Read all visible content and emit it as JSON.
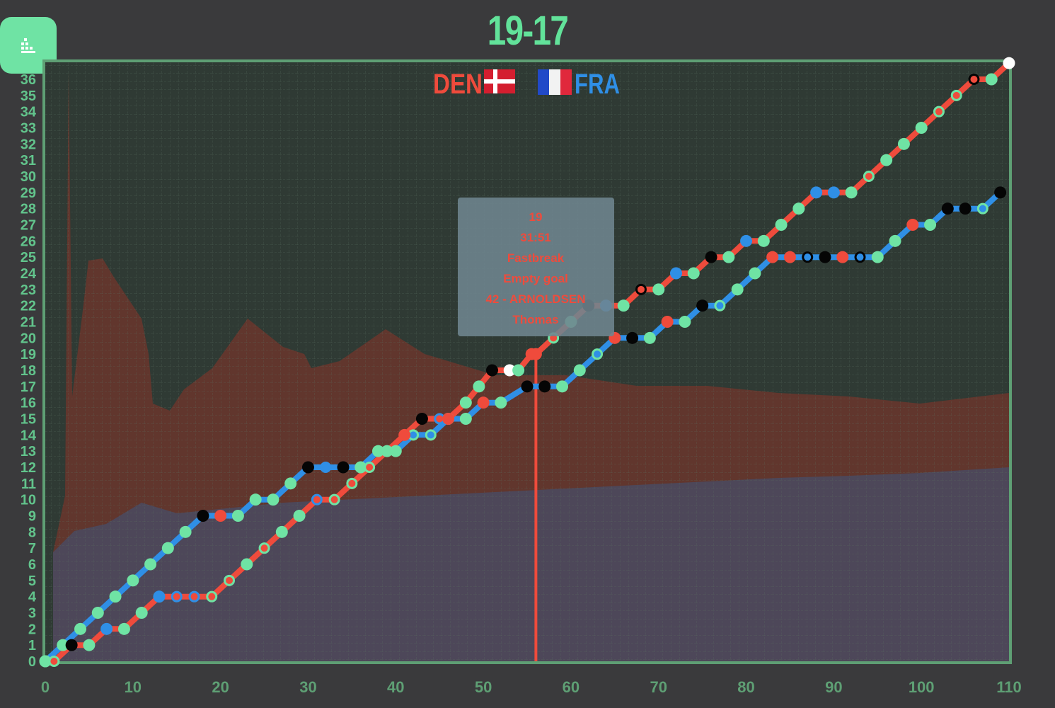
{
  "header": {
    "score": "19-17",
    "menu_icon": "chart-menu-icon"
  },
  "colors": {
    "accent": "#6fe3a4",
    "frame": "#5e9f74",
    "den": "#ef4b3c",
    "fra": "#2f8fe6",
    "bg": "#3a3a3c",
    "black": "#050505",
    "white": "#ffffff"
  },
  "teams": {
    "home": {
      "code": "DEN",
      "flag": "denmark-flag-icon",
      "color": "#ef4b3c"
    },
    "away": {
      "code": "FRA",
      "flag": "france-flag-icon",
      "color": "#2f8fe6"
    }
  },
  "tooltip": {
    "lines": [
      "19",
      "31:51",
      "Fastbreak",
      "Empty goal",
      "42 - ARNOLDSEN",
      "Thomas"
    ]
  },
  "chart_data": {
    "type": "line",
    "xlim": [
      0,
      110
    ],
    "ylim": [
      0,
      36
    ],
    "xticks": [
      0,
      10,
      20,
      30,
      40,
      50,
      60,
      70,
      80,
      90,
      100,
      110
    ],
    "yticks": [
      0,
      1,
      2,
      3,
      4,
      5,
      6,
      7,
      8,
      9,
      10,
      11,
      12,
      13,
      14,
      15,
      16,
      17,
      18,
      19,
      20,
      21,
      22,
      23,
      24,
      25,
      26,
      27,
      28,
      29,
      30,
      31,
      32,
      33,
      34,
      35,
      36
    ],
    "grid": true,
    "cursor_x": 56,
    "series": [
      {
        "name": "DEN",
        "color": "#ef4b3c",
        "points": [
          [
            0,
            0,
            "green"
          ],
          [
            1,
            0,
            "green-ring"
          ],
          [
            3,
            1,
            "black"
          ],
          [
            5,
            1,
            "green"
          ],
          [
            7,
            2,
            "blue"
          ],
          [
            9,
            2,
            "green"
          ],
          [
            11,
            3,
            "green"
          ],
          [
            13,
            4,
            "blue"
          ],
          [
            15,
            4,
            "blue-ring"
          ],
          [
            17,
            4,
            "blue-ring"
          ],
          [
            19,
            4,
            "green-ring"
          ],
          [
            21,
            5,
            "green-ring"
          ],
          [
            23,
            6,
            "green"
          ],
          [
            25,
            7,
            "green-ring"
          ],
          [
            27,
            8,
            "green"
          ],
          [
            29,
            9,
            "green"
          ],
          [
            31,
            10,
            "blue-ring"
          ],
          [
            33,
            10,
            "green-ring"
          ],
          [
            35,
            11,
            "green-ring"
          ],
          [
            37,
            12,
            "green-ring"
          ],
          [
            39,
            13,
            "green"
          ],
          [
            41,
            14,
            "red"
          ],
          [
            43,
            15,
            "black"
          ],
          [
            45,
            15,
            "blue-ring"
          ],
          [
            46,
            15,
            "red"
          ],
          [
            48,
            16,
            "green"
          ],
          [
            49.5,
            17,
            "green"
          ],
          [
            51,
            18,
            "black"
          ],
          [
            53,
            18,
            "white"
          ],
          [
            54,
            18,
            "green"
          ],
          [
            55.5,
            19,
            "red"
          ],
          [
            56,
            19,
            "red"
          ],
          [
            58,
            20,
            "green-ring"
          ],
          [
            60,
            21,
            "green"
          ],
          [
            62,
            22,
            "black"
          ],
          [
            64,
            22,
            "blue"
          ],
          [
            66,
            22,
            "green"
          ],
          [
            68,
            23,
            "black-ring"
          ],
          [
            70,
            23,
            "green"
          ],
          [
            72,
            24,
            "blue"
          ],
          [
            74,
            24,
            "green"
          ],
          [
            76,
            25,
            "black"
          ],
          [
            78,
            25,
            "green"
          ],
          [
            80,
            26,
            "blue"
          ],
          [
            82,
            26,
            "green"
          ],
          [
            84,
            27,
            "green"
          ],
          [
            86,
            28,
            "green"
          ],
          [
            88,
            29,
            "blue"
          ],
          [
            90,
            29,
            "blue"
          ],
          [
            92,
            29,
            "green"
          ],
          [
            94,
            30,
            "green-ring"
          ],
          [
            96,
            31,
            "green"
          ],
          [
            98,
            32,
            "green"
          ],
          [
            100,
            33,
            "green"
          ],
          [
            102,
            34,
            "green-ring"
          ],
          [
            104,
            35,
            "green-ring"
          ],
          [
            106,
            36,
            "black-ring"
          ],
          [
            108,
            36,
            "green"
          ],
          [
            110,
            37,
            "white"
          ]
        ]
      },
      {
        "name": "FRA",
        "color": "#2f8fe6",
        "points": [
          [
            0,
            0,
            "green"
          ],
          [
            2,
            1,
            "green"
          ],
          [
            4,
            2,
            "green"
          ],
          [
            6,
            3,
            "green"
          ],
          [
            8,
            4,
            "green"
          ],
          [
            10,
            5,
            "green"
          ],
          [
            12,
            6,
            "green"
          ],
          [
            14,
            7,
            "green"
          ],
          [
            16,
            8,
            "green"
          ],
          [
            18,
            9,
            "black"
          ],
          [
            20,
            9,
            "red"
          ],
          [
            22,
            9,
            "green"
          ],
          [
            24,
            10,
            "green"
          ],
          [
            26,
            10,
            "green"
          ],
          [
            28,
            11,
            "green"
          ],
          [
            30,
            12,
            "black"
          ],
          [
            32,
            12,
            "blue-ring"
          ],
          [
            34,
            12,
            "black"
          ],
          [
            36,
            12,
            "green"
          ],
          [
            38,
            13,
            "green"
          ],
          [
            40,
            13,
            "green"
          ],
          [
            42,
            14,
            "green-ring"
          ],
          [
            44,
            14,
            "green-ring"
          ],
          [
            46,
            15,
            "green"
          ],
          [
            48,
            15,
            "green"
          ],
          [
            50,
            16,
            "red"
          ],
          [
            52,
            16,
            "green"
          ],
          [
            55,
            17,
            "black"
          ],
          [
            57,
            17,
            "black"
          ],
          [
            59,
            17,
            "green"
          ],
          [
            61,
            18,
            "green"
          ],
          [
            63,
            19,
            "green-ring"
          ],
          [
            65,
            20,
            "red"
          ],
          [
            67,
            20,
            "black"
          ],
          [
            69,
            20,
            "green"
          ],
          [
            71,
            21,
            "red"
          ],
          [
            73,
            21,
            "green"
          ],
          [
            75,
            22,
            "black"
          ],
          [
            77,
            22,
            "green-ring"
          ],
          [
            79,
            23,
            "green"
          ],
          [
            81,
            24,
            "green"
          ],
          [
            83,
            25,
            "red"
          ],
          [
            85,
            25,
            "red"
          ],
          [
            87,
            25,
            "black-ring"
          ],
          [
            89,
            25,
            "black"
          ],
          [
            91,
            25,
            "red"
          ],
          [
            93,
            25,
            "black-ring"
          ],
          [
            95,
            25,
            "green"
          ],
          [
            97,
            26,
            "green"
          ],
          [
            99,
            27,
            "red"
          ],
          [
            101,
            27,
            "green"
          ],
          [
            103,
            28,
            "black"
          ],
          [
            105,
            28,
            "black"
          ],
          [
            107,
            28,
            "green-ring"
          ],
          [
            109,
            29,
            "black"
          ]
        ]
      }
    ]
  }
}
